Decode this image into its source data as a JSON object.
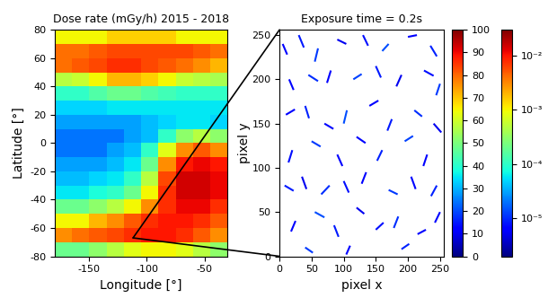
{
  "chart_data": [
    {
      "type": "heatmap",
      "title": "Dose rate (mGy/h) 2015 - 2018",
      "x_label": "Longitude [°]",
      "y_label": "Latitude [°]",
      "x_edges": [
        -180,
        -165,
        -150,
        -135,
        -120,
        -105,
        -90,
        -75,
        -60,
        -45,
        -30
      ],
      "y_edges": [
        -80,
        -70,
        -60,
        -50,
        -40,
        -30,
        -20,
        -10,
        0,
        10,
        20,
        30,
        40,
        50,
        60,
        70,
        80
      ],
      "cells": [
        [
          0.0002,
          0.0002,
          0.0003,
          0.0005,
          0.0008,
          0.001,
          0.001,
          0.0008,
          0.0005,
          0.0003
        ],
        [
          0.003,
          0.004,
          0.005,
          0.006,
          0.008,
          0.01,
          0.01,
          0.008,
          0.005,
          0.003
        ],
        [
          0.001,
          0.001,
          0.002,
          0.003,
          0.005,
          0.008,
          0.01,
          0.01,
          0.008,
          0.005
        ],
        [
          0.0002,
          0.0002,
          0.0003,
          0.0005,
          0.001,
          0.003,
          0.008,
          0.012,
          0.012,
          0.008
        ],
        [
          6e-05,
          6e-05,
          8e-05,
          0.0001,
          0.0002,
          0.001,
          0.008,
          0.015,
          0.015,
          0.012
        ],
        [
          4e-05,
          4e-05,
          5e-05,
          6e-05,
          0.0001,
          0.0005,
          0.006,
          0.015,
          0.015,
          0.012
        ],
        [
          3e-05,
          3e-05,
          3e-05,
          4e-05,
          6e-05,
          0.0002,
          0.003,
          0.01,
          0.012,
          0.01
        ],
        [
          2e-05,
          2e-05,
          2e-05,
          3e-05,
          4e-05,
          0.0001,
          0.0008,
          0.003,
          0.005,
          0.003
        ],
        [
          2e-05,
          2e-05,
          2e-05,
          2e-05,
          3e-05,
          4e-05,
          0.0001,
          0.0003,
          0.0005,
          0.0003
        ],
        [
          3e-05,
          3e-05,
          3e-05,
          3e-05,
          3e-05,
          4e-05,
          5e-05,
          6e-05,
          6e-05,
          5e-05
        ],
        [
          5e-05,
          5e-05,
          5e-05,
          6e-05,
          6e-05,
          6e-05,
          6e-05,
          6e-05,
          6e-05,
          6e-05
        ],
        [
          0.0001,
          0.0001,
          0.00015,
          0.0002,
          0.0002,
          0.00015,
          0.00012,
          0.0001,
          0.0001,
          0.0001
        ],
        [
          0.0005,
          0.0006,
          0.001,
          0.002,
          0.002,
          0.0015,
          0.001,
          0.0006,
          0.0005,
          0.0004
        ],
        [
          0.004,
          0.005,
          0.006,
          0.008,
          0.008,
          0.006,
          0.005,
          0.004,
          0.003,
          0.002
        ],
        [
          0.004,
          0.004,
          0.005,
          0.006,
          0.006,
          0.006,
          0.006,
          0.006,
          0.005,
          0.004
        ],
        [
          0.001,
          0.001,
          0.001,
          0.0015,
          0.0015,
          0.0015,
          0.0015,
          0.001,
          0.001,
          0.001
        ]
      ],
      "xlim": [
        -180,
        -30
      ],
      "xticks": [
        -150,
        -100,
        -50
      ],
      "ylim": [
        -80,
        80
      ],
      "yticks": [
        -80,
        -60,
        -40,
        -20,
        0,
        20,
        40,
        60,
        80
      ],
      "colorbar_lim": [
        2e-06,
        0.03
      ],
      "colorbar_ticks": [
        {
          "value": 1e-05,
          "label": "10⁻⁵"
        },
        {
          "value": 0.0001,
          "label": "10⁻⁴"
        },
        {
          "value": 0.001,
          "label": "10⁻³"
        },
        {
          "value": 0.01,
          "label": "10⁻²"
        }
      ],
      "log": true,
      "detector_position": [
        -112,
        -67
      ]
    },
    {
      "type": "tracks",
      "title": "Exposure time = 0.2s",
      "x_label": "pixel x",
      "y_label": "pixel y",
      "segments": [
        [
          5,
          240,
          12,
          228
        ],
        [
          30,
          250,
          38,
          236
        ],
        [
          60,
          235,
          55,
          220
        ],
        [
          90,
          245,
          104,
          240
        ],
        [
          130,
          250,
          138,
          238
        ],
        [
          170,
          240,
          160,
          232
        ],
        [
          200,
          248,
          214,
          250
        ],
        [
          235,
          238,
          245,
          226
        ],
        [
          15,
          200,
          22,
          188
        ],
        [
          45,
          205,
          60,
          198
        ],
        [
          80,
          210,
          74,
          196
        ],
        [
          115,
          200,
          128,
          206
        ],
        [
          150,
          215,
          158,
          202
        ],
        [
          190,
          205,
          182,
          192
        ],
        [
          225,
          210,
          240,
          204
        ],
        [
          250,
          195,
          244,
          182
        ],
        [
          10,
          160,
          24,
          166
        ],
        [
          40,
          170,
          46,
          156
        ],
        [
          70,
          150,
          84,
          144
        ],
        [
          105,
          165,
          100,
          150
        ],
        [
          140,
          170,
          154,
          176
        ],
        [
          175,
          155,
          168,
          142
        ],
        [
          210,
          165,
          222,
          158
        ],
        [
          240,
          150,
          252,
          140
        ],
        [
          20,
          120,
          14,
          106
        ],
        [
          50,
          130,
          64,
          124
        ],
        [
          90,
          115,
          98,
          102
        ],
        [
          120,
          135,
          134,
          128
        ],
        [
          160,
          120,
          152,
          108
        ],
        [
          195,
          130,
          208,
          136
        ],
        [
          230,
          115,
          224,
          102
        ],
        [
          8,
          80,
          22,
          74
        ],
        [
          35,
          90,
          42,
          76
        ],
        [
          65,
          70,
          78,
          80
        ],
        [
          100,
          85,
          108,
          72
        ],
        [
          135,
          95,
          128,
          82
        ],
        [
          170,
          75,
          184,
          70
        ],
        [
          205,
          90,
          212,
          76
        ],
        [
          245,
          80,
          236,
          68
        ],
        [
          25,
          40,
          18,
          28
        ],
        [
          55,
          50,
          70,
          44
        ],
        [
          85,
          35,
          92,
          22
        ],
        [
          120,
          55,
          132,
          48
        ],
        [
          150,
          30,
          162,
          38
        ],
        [
          185,
          45,
          178,
          32
        ],
        [
          215,
          25,
          228,
          30
        ],
        [
          250,
          50,
          242,
          38
        ],
        [
          40,
          10,
          52,
          4
        ],
        [
          110,
          12,
          104,
          2
        ],
        [
          190,
          8,
          202,
          14
        ]
      ],
      "energies": [
        12,
        15,
        18,
        10,
        14,
        20,
        11,
        16,
        13,
        17,
        12,
        19,
        15,
        10,
        14,
        18,
        11,
        16,
        13,
        20,
        12,
        15,
        17,
        10,
        14,
        18,
        11,
        13,
        16,
        19,
        12,
        15,
        10,
        17,
        14,
        11,
        18,
        13,
        16,
        12,
        20,
        15,
        10,
        14,
        17,
        11,
        13,
        18,
        12,
        16
      ],
      "xlim": [
        0,
        256
      ],
      "xticks": [
        0,
        50,
        100,
        150,
        200,
        250
      ],
      "ylim": [
        0,
        256
      ],
      "yticks": [
        0,
        50,
        100,
        150,
        200,
        250
      ],
      "colorbar_lim": [
        0,
        100
      ],
      "colorbar_ticks": [
        0,
        10,
        20,
        30,
        40,
        50,
        60,
        70,
        80,
        90,
        100
      ]
    }
  ]
}
